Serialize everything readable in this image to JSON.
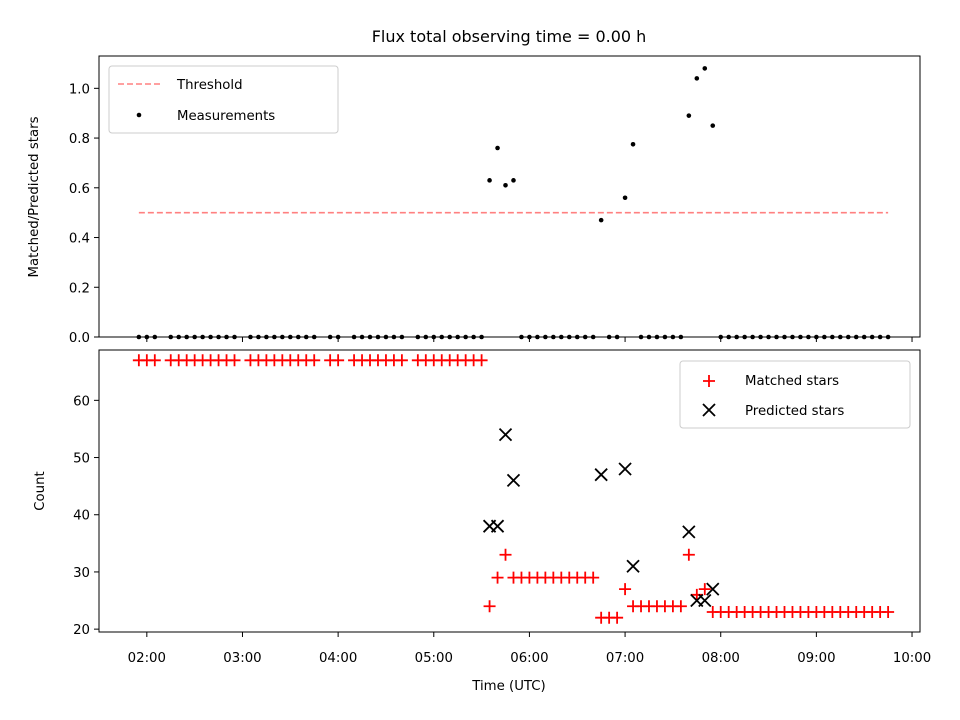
{
  "title": "Flux total observing time = 0.00 h",
  "chart_data": [
    {
      "type": "scatter",
      "ylabel": "Matched/Predicted stars",
      "xlim": [
        "01:30",
        "10:05"
      ],
      "ylim": [
        0,
        1.13
      ],
      "yticks": [
        "0.0",
        "0.2",
        "0.4",
        "0.6",
        "0.8",
        "1.0"
      ],
      "grid": false,
      "legend_position": "top-left",
      "threshold": {
        "name": "Threshold",
        "value": 0.5,
        "x_start": "01:55",
        "x_end": "09:45",
        "color": "#ff8080",
        "style": "dashed"
      },
      "series": [
        {
          "name": "Measurements",
          "color": "#000000",
          "marker": "dot",
          "points": [
            [
              "01:55",
              0
            ],
            [
              "02:00",
              0
            ],
            [
              "02:05",
              0
            ],
            [
              "02:15",
              0
            ],
            [
              "02:20",
              0
            ],
            [
              "02:25",
              0
            ],
            [
              "02:30",
              0
            ],
            [
              "02:35",
              0
            ],
            [
              "02:40",
              0
            ],
            [
              "02:45",
              0
            ],
            [
              "02:50",
              0
            ],
            [
              "02:55",
              0
            ],
            [
              "03:05",
              0
            ],
            [
              "03:10",
              0
            ],
            [
              "03:15",
              0
            ],
            [
              "03:20",
              0
            ],
            [
              "03:25",
              0
            ],
            [
              "03:30",
              0
            ],
            [
              "03:35",
              0
            ],
            [
              "03:40",
              0
            ],
            [
              "03:45",
              0
            ],
            [
              "03:55",
              0
            ],
            [
              "04:00",
              0
            ],
            [
              "04:10",
              0
            ],
            [
              "04:15",
              0
            ],
            [
              "04:20",
              0
            ],
            [
              "04:25",
              0
            ],
            [
              "04:30",
              0
            ],
            [
              "04:35",
              0
            ],
            [
              "04:40",
              0
            ],
            [
              "04:50",
              0
            ],
            [
              "04:55",
              0
            ],
            [
              "05:00",
              0
            ],
            [
              "05:05",
              0
            ],
            [
              "05:10",
              0
            ],
            [
              "05:15",
              0
            ],
            [
              "05:20",
              0
            ],
            [
              "05:25",
              0
            ],
            [
              "05:30",
              0
            ],
            [
              "05:35",
              0.63
            ],
            [
              "05:40",
              0.76
            ],
            [
              "05:45",
              0.61
            ],
            [
              "05:50",
              0.63
            ],
            [
              "05:55",
              0
            ],
            [
              "06:00",
              0
            ],
            [
              "06:05",
              0
            ],
            [
              "06:10",
              0
            ],
            [
              "06:15",
              0
            ],
            [
              "06:20",
              0
            ],
            [
              "06:25",
              0
            ],
            [
              "06:30",
              0
            ],
            [
              "06:35",
              0
            ],
            [
              "06:40",
              0
            ],
            [
              "06:45",
              0.47
            ],
            [
              "06:50",
              0
            ],
            [
              "06:55",
              0
            ],
            [
              "07:00",
              0.56
            ],
            [
              "07:05",
              0.775
            ],
            [
              "07:10",
              0
            ],
            [
              "07:15",
              0
            ],
            [
              "07:20",
              0
            ],
            [
              "07:25",
              0
            ],
            [
              "07:30",
              0
            ],
            [
              "07:35",
              0
            ],
            [
              "07:40",
              0.89
            ],
            [
              "07:45",
              1.04
            ],
            [
              "07:50",
              1.08
            ],
            [
              "07:55",
              0.85
            ],
            [
              "08:00",
              0
            ],
            [
              "08:05",
              0
            ],
            [
              "08:10",
              0
            ],
            [
              "08:15",
              0
            ],
            [
              "08:20",
              0
            ],
            [
              "08:25",
              0
            ],
            [
              "08:30",
              0
            ],
            [
              "08:35",
              0
            ],
            [
              "08:40",
              0
            ],
            [
              "08:45",
              0
            ],
            [
              "08:50",
              0
            ],
            [
              "08:55",
              0
            ],
            [
              "09:00",
              0
            ],
            [
              "09:05",
              0
            ],
            [
              "09:10",
              0
            ],
            [
              "09:15",
              0
            ],
            [
              "09:20",
              0
            ],
            [
              "09:25",
              0
            ],
            [
              "09:30",
              0
            ],
            [
              "09:35",
              0
            ],
            [
              "09:40",
              0
            ],
            [
              "09:45",
              0
            ]
          ]
        }
      ]
    },
    {
      "type": "scatter",
      "xlabel": "Time (UTC)",
      "ylabel": "Count",
      "xlim": [
        "01:30",
        "10:05"
      ],
      "ylim": [
        19.5,
        68.8
      ],
      "xticks": [
        "02:00",
        "03:00",
        "04:00",
        "05:00",
        "06:00",
        "07:00",
        "08:00",
        "09:00",
        "10:00"
      ],
      "yticks": [
        "20",
        "30",
        "40",
        "50",
        "60"
      ],
      "grid": false,
      "legend_position": "top-right",
      "series": [
        {
          "name": "Matched stars",
          "color": "#ff0000",
          "marker": "plus",
          "points": [
            [
              "01:55",
              67
            ],
            [
              "02:00",
              67
            ],
            [
              "02:05",
              67
            ],
            [
              "02:15",
              67
            ],
            [
              "02:20",
              67
            ],
            [
              "02:25",
              67
            ],
            [
              "02:30",
              67
            ],
            [
              "02:35",
              67
            ],
            [
              "02:40",
              67
            ],
            [
              "02:45",
              67
            ],
            [
              "02:50",
              67
            ],
            [
              "02:55",
              67
            ],
            [
              "03:05",
              67
            ],
            [
              "03:10",
              67
            ],
            [
              "03:15",
              67
            ],
            [
              "03:20",
              67
            ],
            [
              "03:25",
              67
            ],
            [
              "03:30",
              67
            ],
            [
              "03:35",
              67
            ],
            [
              "03:40",
              67
            ],
            [
              "03:45",
              67
            ],
            [
              "03:55",
              67
            ],
            [
              "04:00",
              67
            ],
            [
              "04:10",
              67
            ],
            [
              "04:15",
              67
            ],
            [
              "04:20",
              67
            ],
            [
              "04:25",
              67
            ],
            [
              "04:30",
              67
            ],
            [
              "04:35",
              67
            ],
            [
              "04:40",
              67
            ],
            [
              "04:50",
              67
            ],
            [
              "04:55",
              67
            ],
            [
              "05:00",
              67
            ],
            [
              "05:05",
              67
            ],
            [
              "05:10",
              67
            ],
            [
              "05:15",
              67
            ],
            [
              "05:20",
              67
            ],
            [
              "05:25",
              67
            ],
            [
              "05:30",
              67
            ],
            [
              "05:35",
              24
            ],
            [
              "05:40",
              29
            ],
            [
              "05:45",
              33
            ],
            [
              "05:50",
              29
            ],
            [
              "05:55",
              29
            ],
            [
              "06:00",
              29
            ],
            [
              "06:05",
              29
            ],
            [
              "06:10",
              29
            ],
            [
              "06:15",
              29
            ],
            [
              "06:20",
              29
            ],
            [
              "06:25",
              29
            ],
            [
              "06:30",
              29
            ],
            [
              "06:35",
              29
            ],
            [
              "06:40",
              29
            ],
            [
              "06:45",
              22
            ],
            [
              "06:50",
              22
            ],
            [
              "06:55",
              22
            ],
            [
              "07:00",
              27
            ],
            [
              "07:05",
              24
            ],
            [
              "07:10",
              24
            ],
            [
              "07:15",
              24
            ],
            [
              "07:20",
              24
            ],
            [
              "07:25",
              24
            ],
            [
              "07:30",
              24
            ],
            [
              "07:35",
              24
            ],
            [
              "07:40",
              33
            ],
            [
              "07:45",
              26
            ],
            [
              "07:50",
              27
            ],
            [
              "07:55",
              23
            ],
            [
              "08:00",
              23
            ],
            [
              "08:05",
              23
            ],
            [
              "08:10",
              23
            ],
            [
              "08:15",
              23
            ],
            [
              "08:20",
              23
            ],
            [
              "08:25",
              23
            ],
            [
              "08:30",
              23
            ],
            [
              "08:35",
              23
            ],
            [
              "08:40",
              23
            ],
            [
              "08:45",
              23
            ],
            [
              "08:50",
              23
            ],
            [
              "08:55",
              23
            ],
            [
              "09:00",
              23
            ],
            [
              "09:05",
              23
            ],
            [
              "09:10",
              23
            ],
            [
              "09:15",
              23
            ],
            [
              "09:20",
              23
            ],
            [
              "09:25",
              23
            ],
            [
              "09:30",
              23
            ],
            [
              "09:35",
              23
            ],
            [
              "09:40",
              23
            ],
            [
              "09:45",
              23
            ]
          ]
        },
        {
          "name": "Predicted stars",
          "color": "#000000",
          "marker": "x",
          "points": [
            [
              "05:35",
              38
            ],
            [
              "05:40",
              38
            ],
            [
              "05:45",
              54
            ],
            [
              "05:50",
              46
            ],
            [
              "06:45",
              47
            ],
            [
              "07:00",
              48
            ],
            [
              "07:05",
              31
            ],
            [
              "07:40",
              37
            ],
            [
              "07:45",
              25
            ],
            [
              "07:50",
              25
            ],
            [
              "07:55",
              27
            ]
          ]
        }
      ]
    }
  ]
}
